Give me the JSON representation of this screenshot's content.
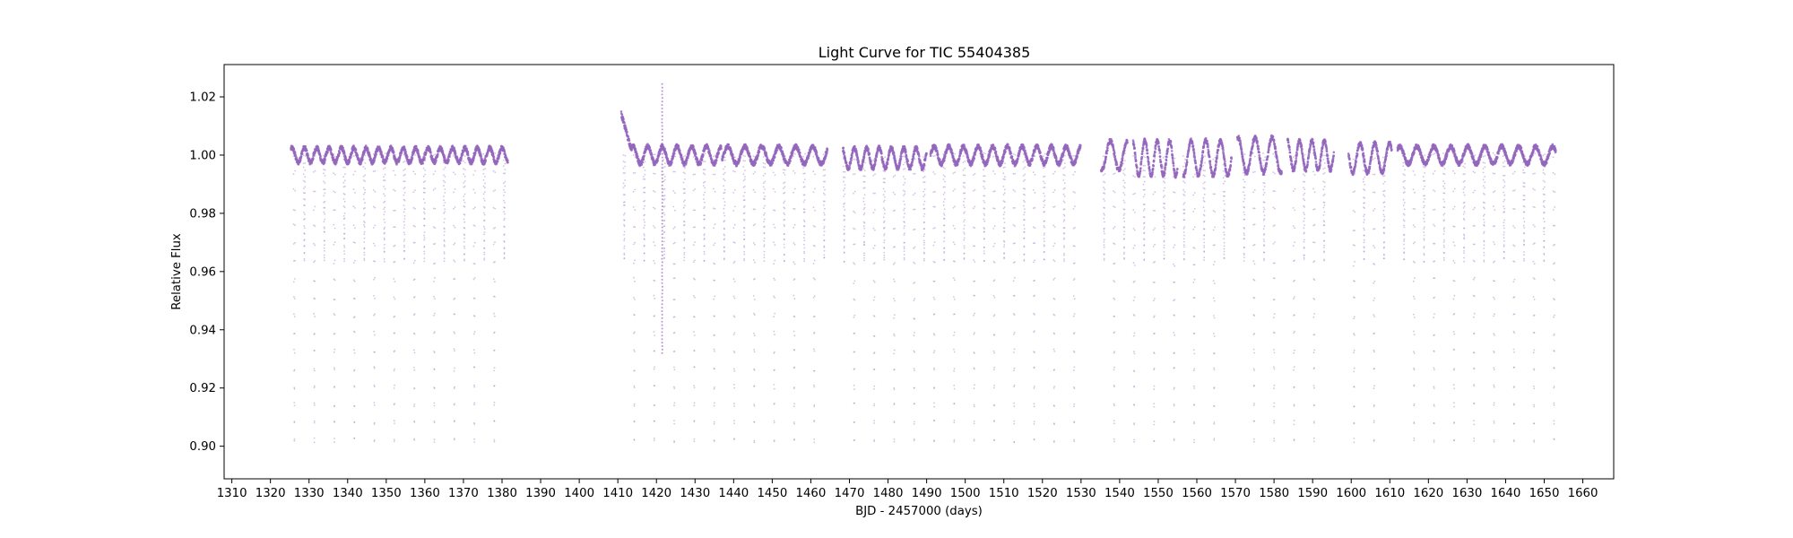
{
  "chart_data": {
    "type": "scatter",
    "title": "Light Curve for TIC 55404385",
    "xlabel": "BJD - 2457000 (days)",
    "ylabel": "Relative Flux",
    "xlim": [
      1308,
      1668
    ],
    "ylim": [
      0.8888,
      1.0311
    ],
    "xticks": [
      1310,
      1320,
      1330,
      1340,
      1350,
      1360,
      1370,
      1380,
      1390,
      1400,
      1410,
      1420,
      1430,
      1440,
      1450,
      1460,
      1470,
      1480,
      1490,
      1500,
      1510,
      1520,
      1530,
      1540,
      1550,
      1560,
      1570,
      1580,
      1590,
      1600,
      1610,
      1620,
      1630,
      1640,
      1650,
      1660
    ],
    "yticks": [
      "0.90",
      "0.92",
      "0.94",
      "0.96",
      "0.98",
      "1.00",
      "1.02"
    ],
    "grid": false,
    "legend": "none",
    "marker_color": "#9467bd",
    "segments": [
      {
        "start": 1325.3,
        "end": 1381.5,
        "baseline": 1.0,
        "variability": 0.0025
      },
      {
        "start": 1410.9,
        "end": 1436.8,
        "baseline": 1.0,
        "variability": 0.003
      },
      {
        "start": 1437.0,
        "end": 1464.3,
        "baseline": 1.0,
        "variability": 0.003
      },
      {
        "start": 1468.3,
        "end": 1490.0,
        "baseline": 0.999,
        "variability": 0.0035
      },
      {
        "start": 1491.0,
        "end": 1529.9,
        "baseline": 1.0,
        "variability": 0.003
      },
      {
        "start": 1535.2,
        "end": 1542.0,
        "baseline": 1.0,
        "variability": 0.005
      },
      {
        "start": 1543.5,
        "end": 1555.0,
        "baseline": 0.999,
        "variability": 0.006
      },
      {
        "start": 1556.5,
        "end": 1569.0,
        "baseline": 0.999,
        "variability": 0.006
      },
      {
        "start": 1570.5,
        "end": 1582.0,
        "baseline": 1.0,
        "variability": 0.006
      },
      {
        "start": 1583.5,
        "end": 1595.5,
        "baseline": 1.0,
        "variability": 0.005
      },
      {
        "start": 1599.3,
        "end": 1610.5,
        "baseline": 0.999,
        "variability": 0.005
      },
      {
        "start": 1612.0,
        "end": 1653.0,
        "baseline": 1.0,
        "variability": 0.003
      }
    ],
    "eclipses": {
      "period": 5.18,
      "reference_epoch": 1326.2,
      "primary_depth_min": 0.899,
      "secondary_depth_min": 0.963,
      "secondary_phase": 0.5
    },
    "flare": {
      "x": 1421.5,
      "y_min": 0.932,
      "y_max": 1.0245
    },
    "ramp": {
      "start": 1410.9,
      "end": 1413.5,
      "y_start": 1.014,
      "y_end": 1.002
    }
  }
}
